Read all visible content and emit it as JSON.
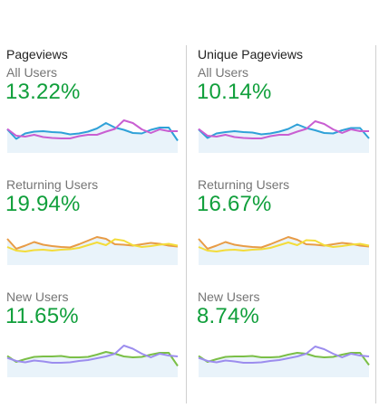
{
  "colors": {
    "value": "#109f3b",
    "label": "#757575",
    "title": "#222222",
    "divider": "#d0d0d0",
    "fill": "#e9f3fa"
  },
  "columns": [
    {
      "title": "Pageviews",
      "segments": [
        {
          "label": "All Users",
          "value": "13.22%",
          "series": [
            {
              "color": "#2fa1d8",
              "values": [
                52,
                31,
                43,
                47,
                48,
                46,
                45,
                41,
                43,
                47,
                54,
                66,
                56,
                51,
                44,
                43,
                51,
                56,
                56,
                27
              ]
            },
            {
              "color": "#c95fd2",
              "values": [
                53,
                38,
                36,
                40,
                35,
                33,
                32,
                32,
                37,
                40,
                40,
                47,
                53,
                72,
                66,
                52,
                44,
                52,
                48,
                48
              ]
            }
          ]
        },
        {
          "label": "Returning Users",
          "value": "19.94%",
          "series": [
            {
              "color": "#e89c46",
              "values": [
                58,
                36,
                43,
                51,
                45,
                42,
                40,
                39,
                46,
                54,
                62,
                58,
                46,
                45,
                43,
                46,
                49,
                47,
                43,
                41
              ]
            },
            {
              "color": "#f3dc3a",
              "values": [
                40,
                32,
                30,
                33,
                34,
                32,
                34,
                35,
                38,
                44,
                50,
                44,
                57,
                54,
                44,
                40,
                42,
                45,
                47,
                43
              ]
            }
          ]
        },
        {
          "label": "New Users",
          "value": "11.65%",
          "series": [
            {
              "color": "#7bbf47",
              "values": [
                47,
                34,
                40,
                45,
                46,
                46,
                47,
                44,
                44,
                45,
                50,
                56,
                52,
                46,
                44,
                45,
                50,
                54,
                54,
                25
              ]
            },
            {
              "color": "#9c8dee",
              "values": [
                43,
                36,
                33,
                37,
                35,
                32,
                32,
                33,
                36,
                38,
                42,
                46,
                52,
                70,
                63,
                52,
                44,
                52,
                48,
                46
              ]
            }
          ]
        }
      ]
    },
    {
      "title": "Unique Pageviews",
      "segments": [
        {
          "label": "All Users",
          "value": "10.14%",
          "series": [
            {
              "color": "#2fa1d8",
              "values": [
                52,
                33,
                43,
                46,
                48,
                46,
                45,
                41,
                43,
                47,
                53,
                63,
                55,
                50,
                44,
                43,
                50,
                55,
                55,
                32
              ]
            },
            {
              "color": "#c95fd2",
              "values": [
                53,
                38,
                36,
                40,
                35,
                33,
                32,
                32,
                37,
                40,
                40,
                47,
                53,
                70,
                64,
                52,
                44,
                52,
                48,
                48
              ]
            }
          ]
        },
        {
          "label": "Returning Users",
          "value": "16.67%",
          "series": [
            {
              "color": "#e89c46",
              "values": [
                58,
                36,
                43,
                51,
                45,
                42,
                40,
                39,
                46,
                54,
                62,
                56,
                46,
                45,
                43,
                46,
                49,
                47,
                43,
                41
              ]
            },
            {
              "color": "#f3dc3a",
              "values": [
                40,
                32,
                30,
                33,
                34,
                32,
                34,
                35,
                38,
                44,
                50,
                44,
                55,
                54,
                44,
                40,
                42,
                45,
                47,
                43
              ]
            }
          ]
        },
        {
          "label": "New Users",
          "value": "8.74%",
          "series": [
            {
              "color": "#7bbf47",
              "values": [
                47,
                34,
                40,
                45,
                46,
                46,
                47,
                44,
                44,
                45,
                50,
                54,
                52,
                46,
                44,
                45,
                50,
                54,
                54,
                27
              ]
            },
            {
              "color": "#9c8dee",
              "values": [
                43,
                36,
                33,
                37,
                35,
                32,
                32,
                33,
                36,
                38,
                42,
                46,
                52,
                68,
                62,
                52,
                44,
                52,
                48,
                46
              ]
            }
          ]
        }
      ]
    }
  ]
}
